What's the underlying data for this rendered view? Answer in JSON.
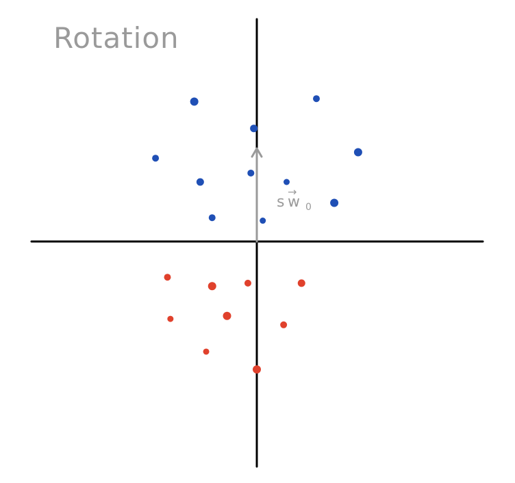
{
  "title": "Rotation",
  "vector_label": {
    "scalar": "s",
    "symbol": "w",
    "subscript": "0",
    "arrow": "→"
  },
  "colors": {
    "axis": "#000000",
    "arrow": "#9a9a9a",
    "text": "#9a9a9a",
    "class_a": "#1f4fb5",
    "class_b": "#e0412c"
  },
  "points": {
    "class_a": [
      [
        -2.1,
        4.7
      ],
      [
        2.0,
        4.8
      ],
      [
        -0.1,
        3.8
      ],
      [
        -3.4,
        2.8
      ],
      [
        3.4,
        3.0
      ],
      [
        -0.2,
        2.3
      ],
      [
        -1.9,
        2.0
      ],
      [
        1.0,
        2.0
      ],
      [
        2.6,
        1.3
      ],
      [
        -1.5,
        0.8
      ],
      [
        0.2,
        0.7
      ]
    ],
    "class_b": [
      [
        -3.0,
        -1.2
      ],
      [
        -1.5,
        -1.5
      ],
      [
        -0.3,
        -1.4
      ],
      [
        1.5,
        -1.4
      ],
      [
        -2.9,
        -2.6
      ],
      [
        -1.0,
        -2.5
      ],
      [
        0.9,
        -2.8
      ],
      [
        -1.7,
        -3.7
      ],
      [
        0.0,
        -4.3
      ]
    ]
  },
  "arrow_vector": [
    0,
    3.2
  ]
}
